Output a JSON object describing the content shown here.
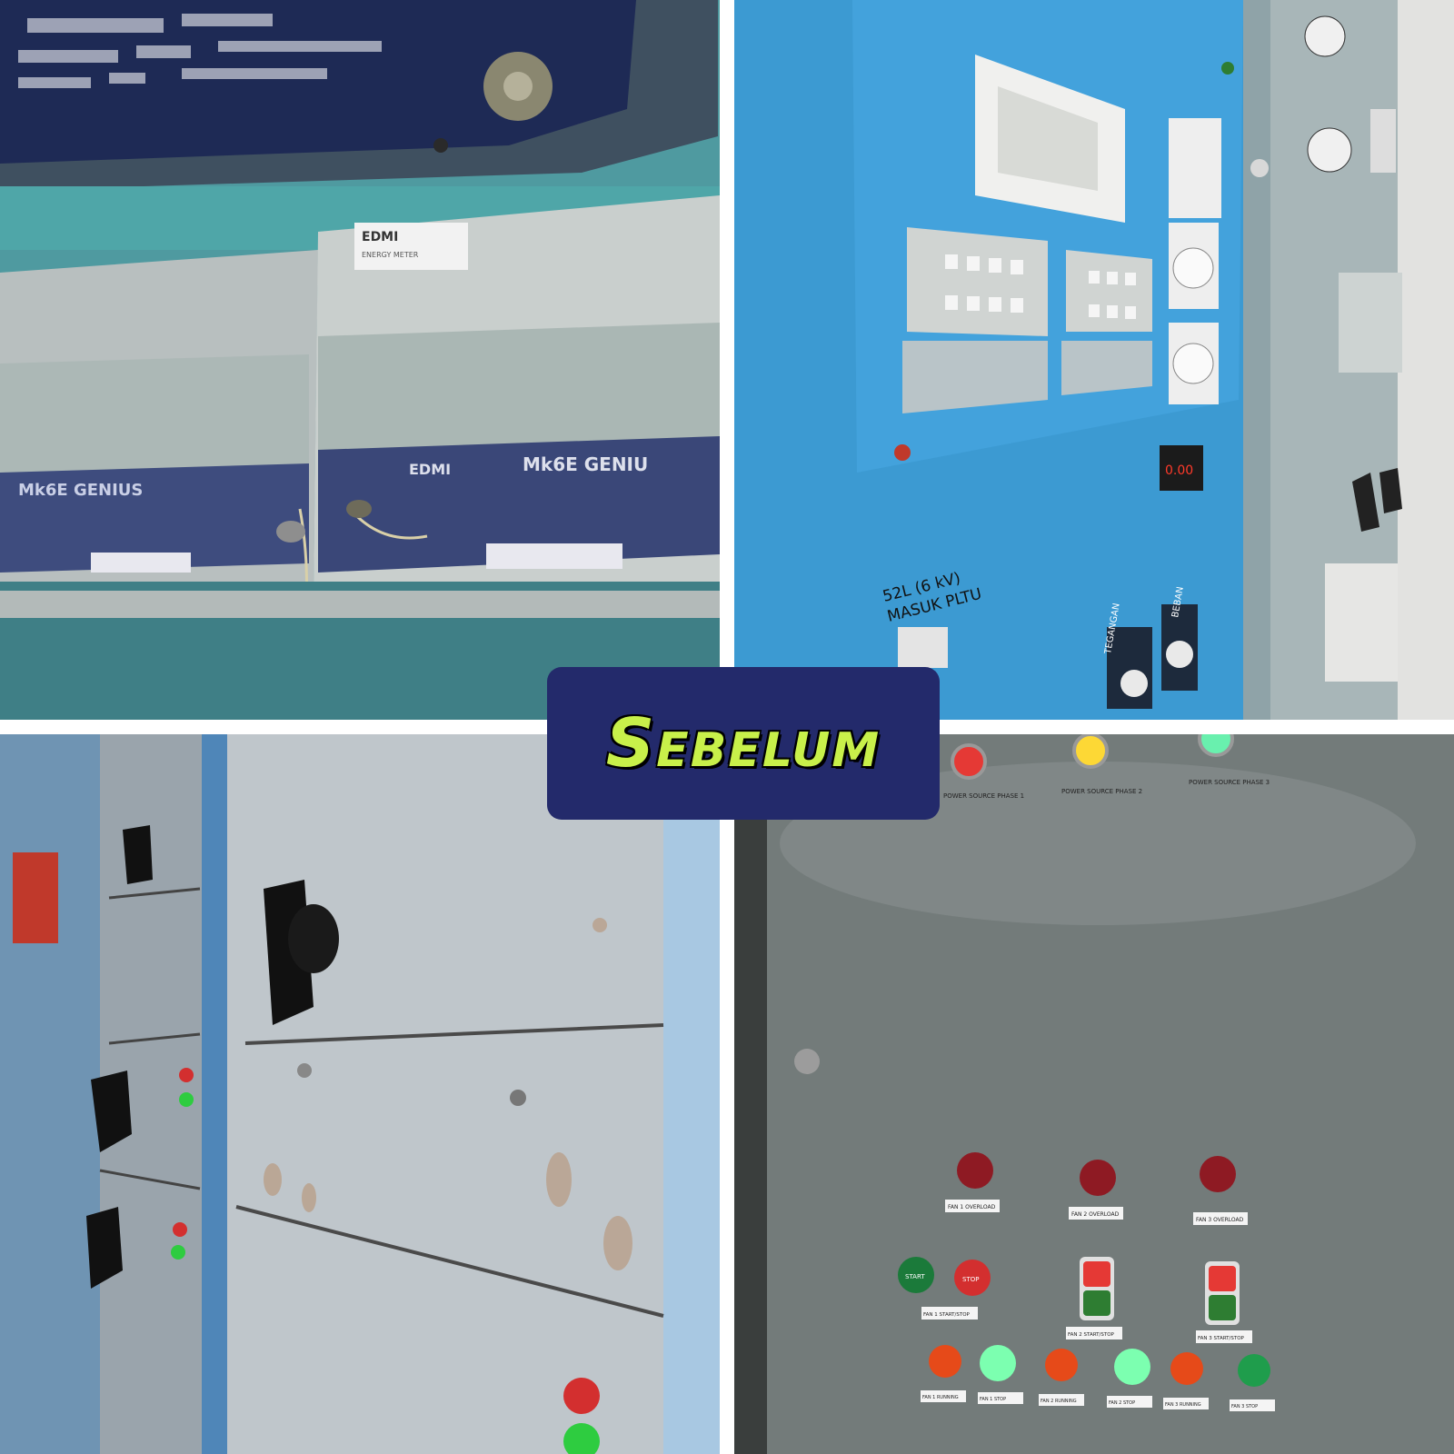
{
  "caption": {
    "text": "Sebelum"
  },
  "photos": {
    "meters": {
      "brand_label": "EDMI",
      "plate_text": "ENERGY METER",
      "meter_left_model": "Mk6E GENIUS",
      "meter_right_brand": "EDMI",
      "meter_right_model": "Mk6E GENIU"
    },
    "blue_panel": {
      "handwritten_label_line1": "52L (6 kV)",
      "handwritten_label_line2": "MASUK PLTU",
      "knob_label_1": "TEGANGAN",
      "knob_label_2": "BEBAN",
      "digital_readout": "0.00"
    },
    "switchgear": {},
    "control_panel": {
      "lamp_labels": [
        "POWER SOURCE PHASE 1",
        "POWER SOURCE PHASE 2",
        "POWER SOURCE PHASE 3"
      ],
      "overload_labels": [
        "FAN 1 OVERLOAD",
        "FAN 2 OVERLOAD",
        "FAN 3 OVERLOAD"
      ],
      "start_label": "START",
      "stop_label": "STOP",
      "startstop_labels": [
        "FAN 1 START/STOP",
        "FAN 2 START/STOP",
        "FAN 3 START/STOP"
      ],
      "status_labels": [
        "FAN 1 RUNNING",
        "FAN 1 STOP",
        "FAN 2 RUNNING",
        "FAN 2 STOP",
        "FAN 3 RUNNING",
        "FAN 3 STOP"
      ]
    }
  }
}
